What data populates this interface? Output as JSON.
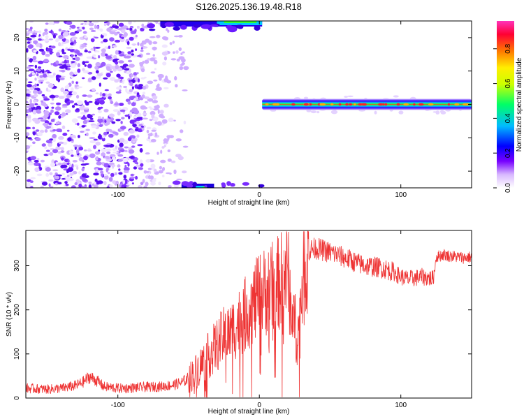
{
  "title": "S126.2025.136.19.48.R18",
  "chart_data": [
    {
      "type": "heatmap",
      "title": "S126.2025.136.19.48.R18",
      "xlabel": "Height of straight line (km)",
      "ylabel": "Frequency (Hz)",
      "xlim": [
        -165,
        150
      ],
      "ylim": [
        -25,
        25
      ],
      "xticks": [
        -100,
        0,
        100
      ],
      "yticks": [
        -20,
        -10,
        0,
        10,
        20
      ],
      "features": [
        {
          "name": "broadband noise",
          "x": [
            -165,
            -55
          ],
          "y": [
            -25,
            25
          ]
        },
        {
          "name": "band near 0 Hz",
          "x": [
            2,
            150
          ],
          "y": [
            -1,
            1
          ]
        },
        {
          "name": "top edge strip",
          "x": [
            -80,
            2
          ],
          "y": [
            22,
            25
          ]
        },
        {
          "name": "bottom edge strip",
          "x": [
            -60,
            2
          ],
          "y": [
            -25,
            -22
          ]
        }
      ],
      "colorbar": {
        "label": "Normalized spectral amplitude",
        "ticks": [
          "0.0",
          "0.2",
          "0.4",
          "0.6",
          "0.8"
        ],
        "range": [
          0,
          0.96
        ]
      }
    },
    {
      "type": "line",
      "xlabel": "Height of straight line (km)",
      "ylabel": "SNR (10 * v/v)",
      "xlim": [
        -165,
        150
      ],
      "ylim": [
        0,
        380
      ],
      "xticks": [
        -100,
        0,
        100
      ],
      "yticks": [
        0,
        100,
        200,
        300
      ],
      "series": [
        {
          "name": "SNR",
          "color": "#ee3333",
          "x": [
            -165,
            -150,
            -140,
            -130,
            -125,
            -120,
            -115,
            -110,
            -100,
            -90,
            -80,
            -70,
            -60,
            -55,
            -50,
            -45,
            -40,
            -35,
            -30,
            -25,
            -20,
            -15,
            -10,
            -5,
            0,
            5,
            10,
            15,
            18,
            20,
            22,
            25,
            27,
            28,
            30,
            33,
            35,
            40,
            45,
            50,
            55,
            60,
            65,
            70,
            75,
            80,
            85,
            90,
            95,
            100,
            105,
            110,
            115,
            120,
            123,
            125,
            130,
            135,
            140,
            145,
            150
          ],
          "y": [
            22,
            20,
            22,
            28,
            35,
            48,
            40,
            26,
            22,
            23,
            25,
            26,
            30,
            35,
            45,
            60,
            80,
            100,
            120,
            140,
            150,
            170,
            190,
            210,
            230,
            245,
            250,
            265,
            280,
            290,
            220,
            170,
            135,
            160,
            250,
            330,
            335,
            340,
            335,
            330,
            325,
            318,
            312,
            305,
            300,
            298,
            296,
            292,
            285,
            275,
            270,
            272,
            275,
            272,
            270,
            320,
            325,
            322,
            320,
            318,
            320
          ]
        }
      ]
    }
  ]
}
